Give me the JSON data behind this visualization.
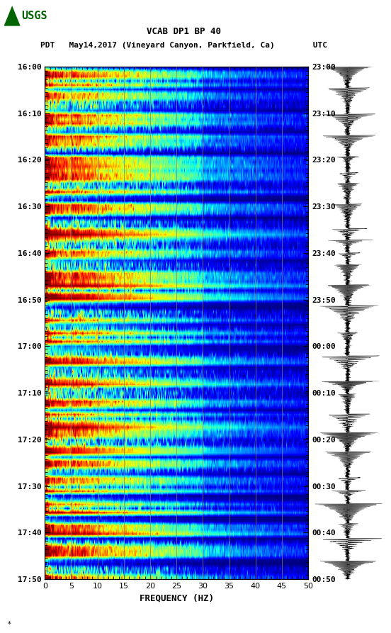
{
  "title_line1": "VCAB DP1 BP 40",
  "title_line2": "PDT   May14,2017 (Vineyard Canyon, Parkfield, Ca)        UTC",
  "xlabel": "FREQUENCY (HZ)",
  "left_yticks": [
    "16:00",
    "16:10",
    "16:20",
    "16:30",
    "16:40",
    "16:50",
    "17:00",
    "17:10",
    "17:20",
    "17:30",
    "17:40",
    "17:50"
  ],
  "right_yticks": [
    "23:00",
    "23:10",
    "23:20",
    "23:30",
    "23:40",
    "23:50",
    "00:00",
    "00:10",
    "00:20",
    "00:30",
    "00:40",
    "00:50"
  ],
  "freq_min": 0,
  "freq_max": 50,
  "time_steps": 120,
  "freq_steps": 500,
  "background_color": "#ffffff",
  "grid_color": "#808080",
  "colormap": "jet",
  "fig_width": 5.52,
  "fig_height": 8.93,
  "dpi": 100,
  "usgs_logo_color": "#006400",
  "title_fontsize": 9,
  "tick_fontsize": 8,
  "label_fontsize": 9,
  "vline_freqs": [
    5,
    10,
    15,
    20,
    25,
    30,
    35,
    40,
    45
  ],
  "xtick_freqs": [
    0,
    5,
    10,
    15,
    20,
    25,
    30,
    35,
    40,
    45,
    50
  ]
}
